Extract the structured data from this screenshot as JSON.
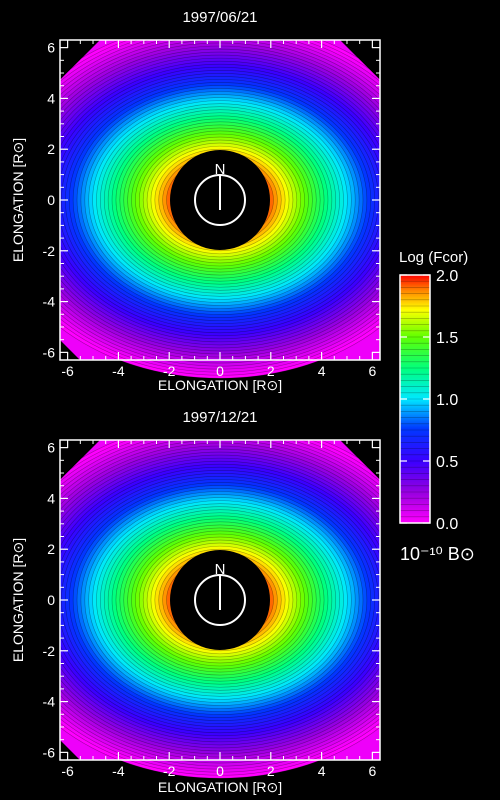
{
  "chart_data": [
    {
      "type": "heatmap",
      "title": "1997/06/21",
      "xlabel": "ELONGATION [R⊙]",
      "ylabel": "ELONGATION [R⊙]",
      "xlim": [
        -6.3,
        6.3
      ],
      "ylim": [
        -6.3,
        6.3
      ],
      "xticks": [
        "-6",
        "-4",
        "-2",
        "0",
        "2",
        "4",
        "6"
      ],
      "yticks": [
        "6",
        "4",
        "2",
        "0",
        "-2",
        "-4",
        "-6"
      ],
      "occulter_radius": 1.8,
      "north_label": "N",
      "north_circle_radius": 1.0,
      "value_range": [
        0.0,
        2.0
      ],
      "color_scale": "log",
      "isophote_ellipticity": 0.78
    },
    {
      "type": "heatmap",
      "title": "1997/12/21",
      "xlabel": "ELONGATION [R⊙]",
      "ylabel": "ELONGATION [R⊙]",
      "xlim": [
        -6.3,
        6.3
      ],
      "ylim": [
        -6.3,
        6.3
      ],
      "xticks": [
        "-6",
        "-4",
        "-2",
        "0",
        "2",
        "4",
        "6"
      ],
      "yticks": [
        "6",
        "4",
        "2",
        "0",
        "-2",
        "-4",
        "-6"
      ],
      "occulter_radius": 1.8,
      "north_label": "N",
      "north_circle_radius": 1.0,
      "value_range": [
        0.0,
        2.0
      ],
      "color_scale": "log",
      "isophote_ellipticity": 0.78
    }
  ],
  "colorbar": {
    "title": "Log (Fcor)",
    "ticks": [
      "2.0",
      "1.5",
      "1.0",
      "0.5",
      "0.0"
    ],
    "tick_values": [
      2.0,
      1.5,
      1.0,
      0.5,
      0.0
    ],
    "range": [
      0.0,
      2.0
    ],
    "unit": "10⁻¹⁰ B⊙"
  },
  "colors": {
    "background": "#000000",
    "occulter": "#000000",
    "axis": "#ffffff",
    "stops": [
      "#ff00ff",
      "#7a00c8",
      "#2400ff",
      "#0050ff",
      "#00e0ff",
      "#00ff60",
      "#9aff00",
      "#ffff00",
      "#ff8000",
      "#ff0000"
    ]
  }
}
